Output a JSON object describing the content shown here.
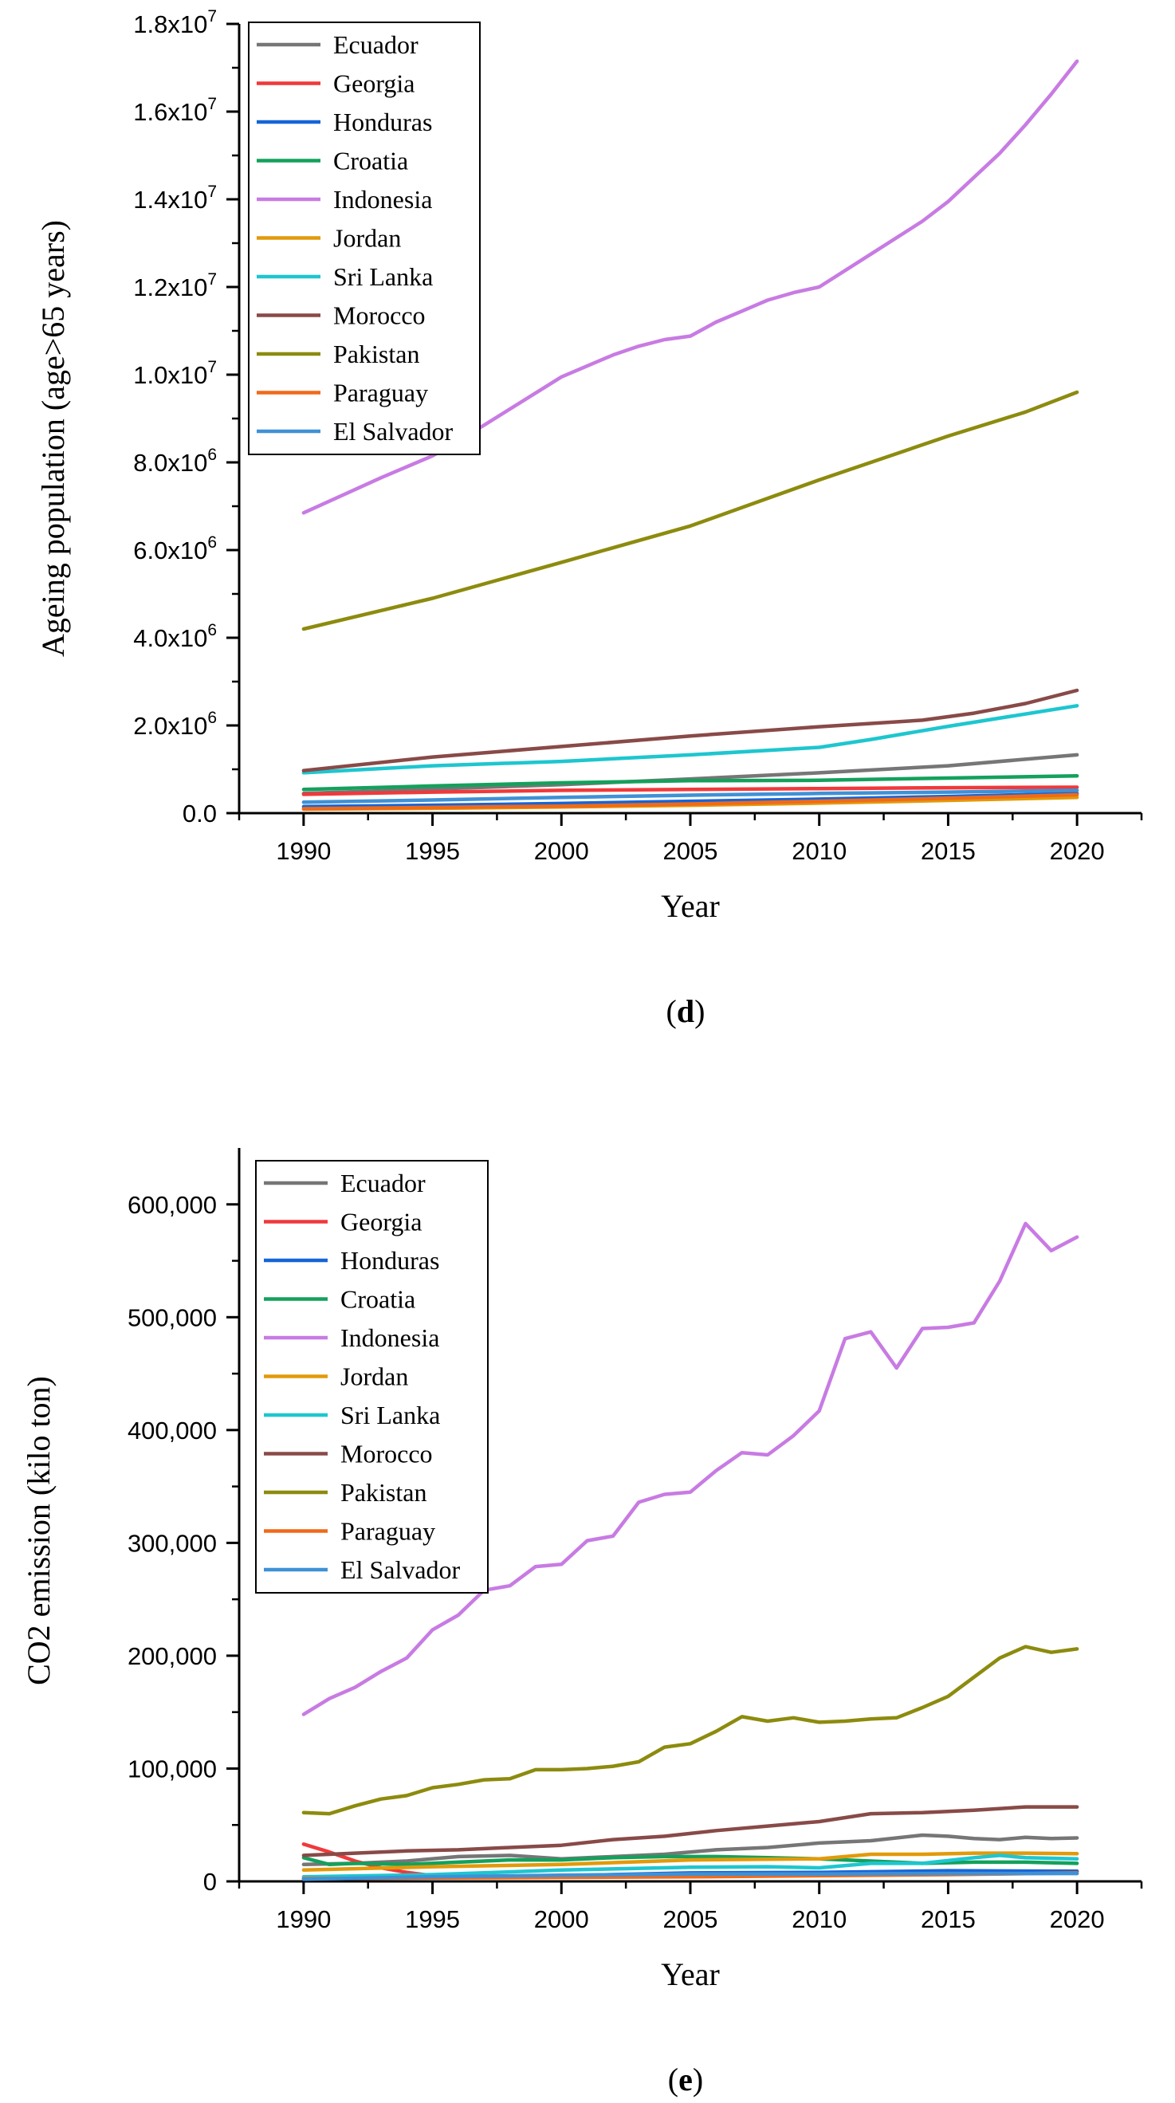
{
  "figure": {
    "caption_d": "(d)",
    "caption_e": "(e)"
  },
  "chart_data": [
    {
      "id": "d",
      "type": "line",
      "title": "",
      "xlabel": "Year",
      "ylabel": "Ageing population (age>65 years)",
      "xlim": [
        1987.5,
        2022.5
      ],
      "ylim": [
        0,
        18000000
      ],
      "x_ticks": [
        1990,
        1995,
        2000,
        2005,
        2010,
        2015,
        2020
      ],
      "y_ticks": [
        {
          "value": 0,
          "mantissa": "0.0",
          "exp": ""
        },
        {
          "value": 2000000,
          "mantissa": "2.0x10",
          "exp": "6"
        },
        {
          "value": 4000000,
          "mantissa": "4.0x10",
          "exp": "6"
        },
        {
          "value": 6000000,
          "mantissa": "6.0x10",
          "exp": "6"
        },
        {
          "value": 8000000,
          "mantissa": "8.0x10",
          "exp": "6"
        },
        {
          "value": 10000000,
          "mantissa": "1.0x10",
          "exp": "7"
        },
        {
          "value": 12000000,
          "mantissa": "1.2x10",
          "exp": "7"
        },
        {
          "value": 14000000,
          "mantissa": "1.4x10",
          "exp": "7"
        },
        {
          "value": 16000000,
          "mantissa": "1.6x10",
          "exp": "7"
        },
        {
          "value": 18000000,
          "mantissa": "1.8x10",
          "exp": "7"
        }
      ],
      "legend_position": "top-left",
      "series": [
        {
          "name": "Ecuador",
          "color": "#767676",
          "x": [
            1990,
            1995,
            2000,
            2005,
            2010,
            2015,
            2020
          ],
          "values": [
            450000,
            550000,
            650000,
            780000,
            920000,
            1080000,
            1330000
          ]
        },
        {
          "name": "Georgia",
          "color": "#f0393b",
          "x": [
            1990,
            1995,
            2000,
            2005,
            2010,
            2015,
            2020
          ],
          "values": [
            430000,
            480000,
            520000,
            540000,
            560000,
            580000,
            590000
          ]
        },
        {
          "name": "Honduras",
          "color": "#1565d8",
          "x": [
            1990,
            1995,
            2000,
            2005,
            2010,
            2015,
            2020
          ],
          "values": [
            150000,
            180000,
            220000,
            270000,
            320000,
            380000,
            450000
          ]
        },
        {
          "name": "Croatia",
          "color": "#13a15c",
          "x": [
            1990,
            1995,
            2000,
            2005,
            2010,
            2015,
            2020
          ],
          "values": [
            540000,
            620000,
            690000,
            740000,
            750000,
            800000,
            850000
          ]
        },
        {
          "name": "Indonesia",
          "color": "#c87be3",
          "x": [
            1990,
            1993,
            1995,
            1997,
            2000,
            2002,
            2003,
            2004,
            2005,
            2006,
            2007,
            2008,
            2009,
            2010,
            2012,
            2014,
            2015,
            2016,
            2017,
            2018,
            2019,
            2020
          ],
          "values": [
            6850000,
            7650000,
            8150000,
            8850000,
            9950000,
            10450000,
            10650000,
            10800000,
            10880000,
            11200000,
            11450000,
            11700000,
            11870000,
            12000000,
            12750000,
            13500000,
            13950000,
            14500000,
            15050000,
            15700000,
            16400000,
            17150000
          ]
        },
        {
          "name": "Jordan",
          "color": "#e29a0a",
          "x": [
            1990,
            1995,
            2000,
            2005,
            2010,
            2015,
            2020
          ],
          "values": [
            90000,
            110000,
            140000,
            180000,
            230000,
            290000,
            360000
          ]
        },
        {
          "name": "Sri Lanka",
          "color": "#1ec6cf",
          "x": [
            1990,
            1995,
            2000,
            2005,
            2010,
            2012,
            2015,
            2020
          ],
          "values": [
            920000,
            1080000,
            1180000,
            1330000,
            1500000,
            1680000,
            1980000,
            2450000
          ]
        },
        {
          "name": "Morocco",
          "color": "#884a48",
          "x": [
            1990,
            1995,
            2000,
            2005,
            2010,
            2014,
            2016,
            2018,
            2020
          ],
          "values": [
            970000,
            1280000,
            1520000,
            1760000,
            1970000,
            2120000,
            2280000,
            2500000,
            2800000
          ]
        },
        {
          "name": "Pakistan",
          "color": "#8d8b0e",
          "x": [
            1990,
            1995,
            2000,
            2005,
            2010,
            2015,
            2018,
            2020
          ],
          "values": [
            4200000,
            4900000,
            5720000,
            6550000,
            7600000,
            8600000,
            9150000,
            9600000
          ]
        },
        {
          "name": "Paraguay",
          "color": "#f06a1a",
          "x": [
            1990,
            1995,
            2000,
            2005,
            2010,
            2015,
            2020
          ],
          "values": [
            100000,
            130000,
            160000,
            210000,
            270000,
            340000,
            420000
          ]
        },
        {
          "name": "El Salvador",
          "color": "#3f91d6",
          "x": [
            1990,
            1995,
            2000,
            2005,
            2010,
            2015,
            2020
          ],
          "values": [
            250000,
            300000,
            360000,
            410000,
            450000,
            480000,
            520000
          ]
        }
      ]
    },
    {
      "id": "e",
      "type": "line",
      "title": "",
      "xlabel": "Year",
      "ylabel": "CO2 emission (kilo ton)",
      "xlim": [
        1987.5,
        2022.5
      ],
      "ylim": [
        0,
        650000
      ],
      "x_ticks": [
        1990,
        1995,
        2000,
        2005,
        2010,
        2015,
        2020
      ],
      "y_ticks": [
        {
          "value": 0,
          "label": "0"
        },
        {
          "value": 100000,
          "label": "100,000"
        },
        {
          "value": 200000,
          "label": "200,000"
        },
        {
          "value": 300000,
          "label": "300,000"
        },
        {
          "value": 400000,
          "label": "400,000"
        },
        {
          "value": 500000,
          "label": "500,000"
        },
        {
          "value": 600000,
          "label": "600,000"
        }
      ],
      "legend_position": "top-left",
      "series": [
        {
          "name": "Ecuador",
          "color": "#767676",
          "x": [
            1990,
            1992,
            1994,
            1996,
            1998,
            2000,
            2002,
            2004,
            2006,
            2008,
            2010,
            2012,
            2014,
            2015,
            2016,
            2017,
            2018,
            2019,
            2020
          ],
          "values": [
            15000,
            16000,
            18000,
            22000,
            23000,
            20000,
            22000,
            24000,
            28000,
            30000,
            34000,
            36000,
            41000,
            40000,
            38000,
            37000,
            39000,
            38000,
            38500
          ]
        },
        {
          "name": "Georgia",
          "color": "#f0393b",
          "x": [
            1990,
            1991,
            1992,
            1993,
            1994,
            1995,
            1996,
            2000,
            2005,
            2010,
            2015,
            2020
          ],
          "values": [
            33000,
            26000,
            18000,
            12000,
            8000,
            5000,
            4000,
            4500,
            5000,
            6000,
            8000,
            9000
          ]
        },
        {
          "name": "Honduras",
          "color": "#1565d8",
          "x": [
            1990,
            1995,
            2000,
            2005,
            2010,
            2015,
            2020
          ],
          "values": [
            2500,
            3500,
            5000,
            7500,
            8000,
            9500,
            9000
          ]
        },
        {
          "name": "Croatia",
          "color": "#13a15c",
          "x": [
            1990,
            1991,
            1992,
            1994,
            1996,
            1998,
            2000,
            2002,
            2004,
            2006,
            2008,
            2010,
            2012,
            2014,
            2016,
            2018,
            2020
          ],
          "values": [
            21000,
            15000,
            16000,
            15000,
            17000,
            19000,
            19000,
            21000,
            22000,
            22000,
            21000,
            20000,
            18000,
            16000,
            17000,
            17000,
            16000
          ]
        },
        {
          "name": "Indonesia",
          "color": "#c87be3",
          "x": [
            1990,
            1991,
            1992,
            1993,
            1994,
            1995,
            1996,
            1997,
            1998,
            1999,
            2000,
            2001,
            2002,
            2003,
            2004,
            2005,
            2006,
            2007,
            2008,
            2009,
            2010,
            2011,
            2012,
            2013,
            2014,
            2015,
            2016,
            2017,
            2018,
            2019,
            2020
          ],
          "values": [
            148000,
            162000,
            172000,
            186000,
            198000,
            223000,
            236000,
            258000,
            262000,
            279000,
            281000,
            302000,
            306000,
            336000,
            343000,
            345000,
            364000,
            380000,
            378000,
            395000,
            417000,
            481000,
            487000,
            455000,
            490000,
            491000,
            495000,
            532000,
            583000,
            559000,
            571000
          ]
        },
        {
          "name": "Jordan",
          "color": "#e29a0a",
          "x": [
            1990,
            1995,
            2000,
            2005,
            2010,
            2012,
            2014,
            2016,
            2018,
            2020
          ],
          "values": [
            10000,
            13000,
            15000,
            19000,
            20000,
            24000,
            24000,
            25000,
            25000,
            24500
          ]
        },
        {
          "name": "Sri Lanka",
          "color": "#1ec6cf",
          "x": [
            1990,
            1995,
            2000,
            2005,
            2008,
            2010,
            2012,
            2014,
            2016,
            2017,
            2018,
            2020
          ],
          "values": [
            4000,
            6000,
            10000,
            12500,
            13000,
            12000,
            16000,
            16000,
            21000,
            23000,
            21000,
            20000
          ]
        },
        {
          "name": "Morocco",
          "color": "#884a48",
          "x": [
            1990,
            1992,
            1994,
            1996,
            1998,
            2000,
            2002,
            2004,
            2006,
            2008,
            2010,
            2012,
            2014,
            2016,
            2018,
            2020
          ],
          "values": [
            23000,
            25000,
            27000,
            28000,
            30000,
            32000,
            37000,
            40000,
            45000,
            49000,
            53000,
            60000,
            61000,
            63000,
            66000,
            66000
          ]
        },
        {
          "name": "Pakistan",
          "color": "#8d8b0e",
          "x": [
            1990,
            1991,
            1992,
            1993,
            1994,
            1995,
            1996,
            1997,
            1998,
            1999,
            2000,
            2001,
            2002,
            2003,
            2004,
            2005,
            2006,
            2007,
            2008,
            2009,
            2010,
            2011,
            2012,
            2013,
            2014,
            2015,
            2016,
            2017,
            2018,
            2019,
            2020
          ],
          "values": [
            61000,
            60000,
            67000,
            73000,
            76000,
            83000,
            86000,
            90000,
            91000,
            99000,
            99000,
            100000,
            102000,
            106000,
            119000,
            122000,
            133000,
            146000,
            142000,
            145000,
            141000,
            142000,
            144000,
            145000,
            154000,
            164000,
            181000,
            198000,
            208000,
            203000,
            206000
          ]
        },
        {
          "name": "Paraguay",
          "color": "#f06a1a",
          "x": [
            1990,
            1995,
            2000,
            2005,
            2010,
            2015,
            2020
          ],
          "values": [
            2500,
            3000,
            3500,
            4000,
            5000,
            6000,
            7500
          ]
        },
        {
          "name": "El Salvador",
          "color": "#3f91d6",
          "x": [
            1990,
            1995,
            2000,
            2005,
            2010,
            2015,
            2020
          ],
          "values": [
            2000,
            4000,
            5500,
            6500,
            6500,
            7000,
            7000
          ]
        }
      ]
    }
  ]
}
